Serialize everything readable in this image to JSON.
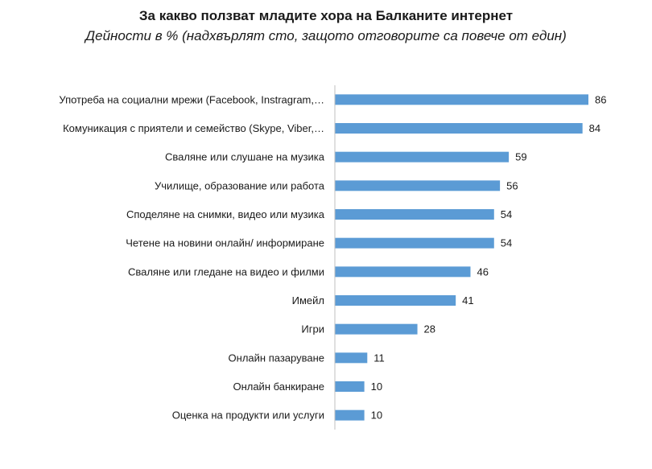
{
  "chart_data": {
    "type": "bar",
    "orientation": "horizontal",
    "title": "За какво ползват младите хора на Балканите интернет",
    "subtitle": "Дейности в % (надхвърлят сто, защото отговорите са повече от един)",
    "categories": [
      "Употреба на социални мрежи (Facebook, Instragram,…",
      "Комуникация с приятели и семейство (Skype, Viber,…",
      "Сваляне или слушане на музика",
      "Училище, образование или работа",
      "Споделяне на снимки, видео или музика",
      "Четене на новини онлайн/ информиране",
      "Сваляне или гледане на видео и филми",
      "Имейл",
      "Игри",
      "Онлайн пазаруване",
      "Онлайн банкиране",
      "Оценка на продукти или услуги"
    ],
    "values": [
      86,
      84,
      59,
      56,
      54,
      54,
      46,
      41,
      28,
      11,
      10,
      10
    ],
    "xlim": [
      0,
      100
    ],
    "bar_color": "#5b9bd5",
    "grid": false,
    "legend": "none"
  }
}
